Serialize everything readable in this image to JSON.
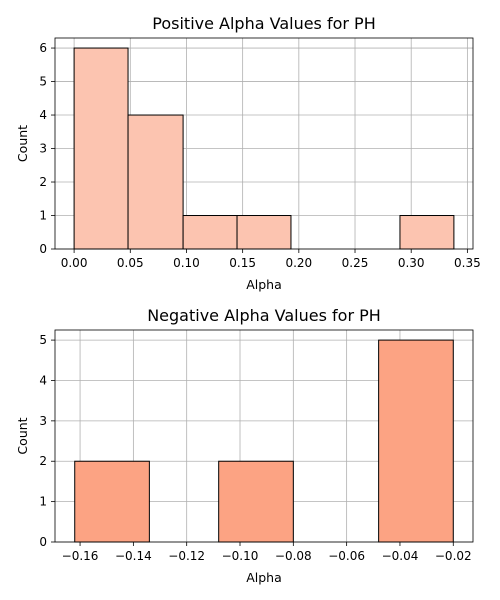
{
  "chart_data": [
    {
      "type": "bar",
      "title": "Positive Alpha Values for PH",
      "xlabel": "Alpha",
      "ylabel": "Count",
      "xlim": [
        -0.017,
        0.355
      ],
      "ylim": [
        0,
        6.3
      ],
      "xticks": [
        "0.00",
        "0.05",
        "0.10",
        "0.15",
        "0.20",
        "0.25",
        "0.30",
        "0.35"
      ],
      "xtick_values": [
        0.0,
        0.05,
        0.1,
        0.15,
        0.2,
        0.25,
        0.3,
        0.35
      ],
      "yticks": [
        "0",
        "1",
        "2",
        "3",
        "4",
        "5",
        "6"
      ],
      "ytick_values": [
        0,
        1,
        2,
        3,
        4,
        5,
        6
      ],
      "bins": [
        {
          "x0": 0.0,
          "x1": 0.048,
          "count": 6
        },
        {
          "x0": 0.048,
          "x1": 0.097,
          "count": 4
        },
        {
          "x0": 0.097,
          "x1": 0.145,
          "count": 1
        },
        {
          "x0": 0.145,
          "x1": 0.193,
          "count": 1
        },
        {
          "x0": 0.193,
          "x1": 0.242,
          "count": 0
        },
        {
          "x0": 0.242,
          "x1": 0.29,
          "count": 0
        },
        {
          "x0": 0.29,
          "x1": 0.338,
          "count": 1
        }
      ],
      "color": "#fcc4b0",
      "grid": true
    },
    {
      "type": "bar",
      "title": "Negative Alpha Values for PH",
      "xlabel": "Alpha",
      "ylabel": "Count",
      "xlim": [
        -0.1694,
        -0.0126
      ],
      "ylim": [
        0,
        5.25
      ],
      "xticks": [
        "−0.16",
        "−0.14",
        "−0.12",
        "−0.10",
        "−0.08",
        "−0.06",
        "−0.04",
        "−0.02"
      ],
      "xtick_values": [
        -0.16,
        -0.14,
        -0.12,
        -0.1,
        -0.08,
        -0.06,
        -0.04,
        -0.02
      ],
      "yticks": [
        "0",
        "1",
        "2",
        "3",
        "4",
        "5"
      ],
      "ytick_values": [
        0,
        1,
        2,
        3,
        4,
        5
      ],
      "bins": [
        {
          "x0": -0.162,
          "x1": -0.134,
          "count": 2
        },
        {
          "x0": -0.134,
          "x1": -0.108,
          "count": 0
        },
        {
          "x0": -0.108,
          "x1": -0.08,
          "count": 2
        },
        {
          "x0": -0.08,
          "x1": -0.048,
          "count": 0
        },
        {
          "x0": -0.048,
          "x1": -0.02,
          "count": 5
        }
      ],
      "color": "#fca383",
      "grid": true
    }
  ]
}
